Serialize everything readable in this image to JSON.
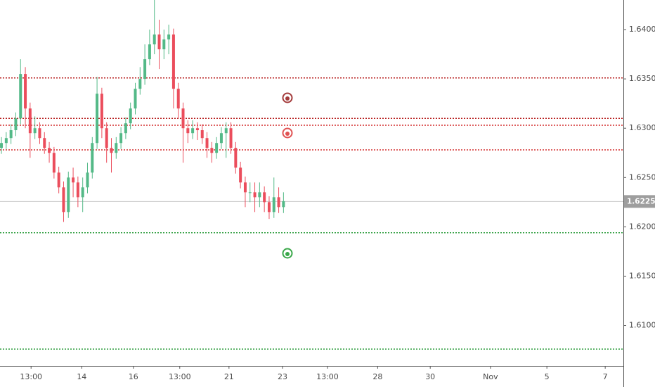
{
  "chart_data": {
    "type": "candlestick",
    "open": [
      1.628,
      1.6285,
      1.629,
      1.6298,
      1.631,
      1.6355,
      1.632,
      1.6295,
      1.63,
      1.629,
      1.628,
      1.6275,
      1.6255,
      1.624,
      1.6215,
      1.625,
      1.6245,
      1.623,
      1.624,
      1.6255,
      1.6285,
      1.6335,
      1.63,
      1.628,
      1.6275,
      1.6285,
      1.6295,
      1.6305,
      1.632,
      1.634,
      1.635,
      1.637,
      1.6385,
      1.6395,
      1.638,
      1.639,
      1.6395,
      1.634,
      1.632,
      1.63,
      1.6295,
      1.63,
      1.6298,
      1.629,
      1.628,
      1.6275,
      1.6285,
      1.6295,
      1.63,
      1.628,
      1.626,
      1.6245,
      1.6235,
      1.6235,
      1.623,
      1.6235,
      1.6225,
      1.6215,
      1.623,
      1.622
    ],
    "high": [
      1.6291,
      1.6296,
      1.6304,
      1.6316,
      1.637,
      1.6362,
      1.6326,
      1.6312,
      1.6306,
      1.6296,
      1.6286,
      1.6281,
      1.6261,
      1.6246,
      1.6256,
      1.626,
      1.6251,
      1.625,
      1.6265,
      1.6291,
      1.6352,
      1.6341,
      1.6306,
      1.629,
      1.6291,
      1.6301,
      1.6311,
      1.6326,
      1.6346,
      1.6362,
      1.6385,
      1.64,
      1.643,
      1.641,
      1.64,
      1.6405,
      1.6401,
      1.6346,
      1.6326,
      1.6308,
      1.6308,
      1.6306,
      1.6304,
      1.6296,
      1.6286,
      1.6291,
      1.6301,
      1.6306,
      1.6306,
      1.6286,
      1.6266,
      1.6251,
      1.6245,
      1.6245,
      1.6245,
      1.6241,
      1.6231,
      1.625,
      1.624,
      1.6235
    ],
    "low": [
      1.6274,
      1.6279,
      1.6284,
      1.6292,
      1.6304,
      1.63,
      1.627,
      1.6289,
      1.6284,
      1.6274,
      1.6265,
      1.6249,
      1.6234,
      1.6205,
      1.6209,
      1.623,
      1.622,
      1.6215,
      1.6234,
      1.6249,
      1.6279,
      1.629,
      1.6265,
      1.6255,
      1.6269,
      1.6279,
      1.6289,
      1.6299,
      1.6314,
      1.6334,
      1.6344,
      1.6364,
      1.6375,
      1.636,
      1.637,
      1.6375,
      1.632,
      1.631,
      1.6265,
      1.6285,
      1.6289,
      1.6288,
      1.6284,
      1.627,
      1.6265,
      1.6269,
      1.6279,
      1.627,
      1.6274,
      1.6254,
      1.6239,
      1.622,
      1.6225,
      1.6215,
      1.622,
      1.6215,
      1.6208,
      1.6209,
      1.6214,
      1.6214
    ],
    "close": [
      1.6285,
      1.629,
      1.6298,
      1.631,
      1.6355,
      1.632,
      1.6295,
      1.63,
      1.629,
      1.628,
      1.6275,
      1.6255,
      1.624,
      1.6215,
      1.625,
      1.6245,
      1.623,
      1.624,
      1.6255,
      1.6285,
      1.6335,
      1.63,
      1.628,
      1.6275,
      1.6285,
      1.6295,
      1.6305,
      1.632,
      1.634,
      1.635,
      1.637,
      1.6385,
      1.6395,
      1.638,
      1.639,
      1.6395,
      1.634,
      1.632,
      1.63,
      1.6295,
      1.63,
      1.6298,
      1.629,
      1.628,
      1.6275,
      1.6285,
      1.6295,
      1.63,
      1.628,
      1.626,
      1.6245,
      1.6235,
      1.6235,
      1.623,
      1.6235,
      1.6225,
      1.6215,
      1.623,
      1.622,
      1.6226
    ],
    "up_color": "#53b987",
    "down_color": "#eb4d5c",
    "ylim": [
      1.6059,
      1.643
    ],
    "yticks": [
      {
        "value": 1.61,
        "label": "1.61000"
      },
      {
        "value": 1.615,
        "label": "1.61500"
      },
      {
        "value": 1.62,
        "label": "1.62000"
      },
      {
        "value": 1.625,
        "label": "1.62500"
      },
      {
        "value": 1.63,
        "label": "1.63000"
      },
      {
        "value": 1.635,
        "label": "1.63500"
      },
      {
        "value": 1.64,
        "label": "1.64000"
      }
    ],
    "xlim": [
      -0.3,
      130.1
    ],
    "xticks": [
      {
        "value": 6.2,
        "label": "13:00"
      },
      {
        "value": 16.8,
        "label": "14"
      },
      {
        "value": 27.6,
        "label": "16"
      },
      {
        "value": 37.3,
        "label": "13:00"
      },
      {
        "value": 47.6,
        "label": "21"
      },
      {
        "value": 58.8,
        "label": "23"
      },
      {
        "value": 68.2,
        "label": "13:00"
      },
      {
        "value": 78.7,
        "label": "28"
      },
      {
        "value": 89.7,
        "label": "30"
      },
      {
        "value": 102.3,
        "label": "Nov"
      },
      {
        "value": 114.1,
        "label": "5"
      },
      {
        "value": 126.3,
        "label": "7"
      }
    ],
    "levels": [
      {
        "value": 1.6351,
        "color": "#b71c1c"
      },
      {
        "value": 1.631,
        "color": "#b71c1c"
      },
      {
        "value": 1.6303,
        "color": "#d32f2f"
      },
      {
        "value": 1.6278,
        "color": "#d32f2f"
      },
      {
        "value": 1.6194,
        "color": "#2e9e3e"
      },
      {
        "value": 1.6076,
        "color": "#2e9e3e"
      }
    ],
    "last_price": 1.62257
  }
}
